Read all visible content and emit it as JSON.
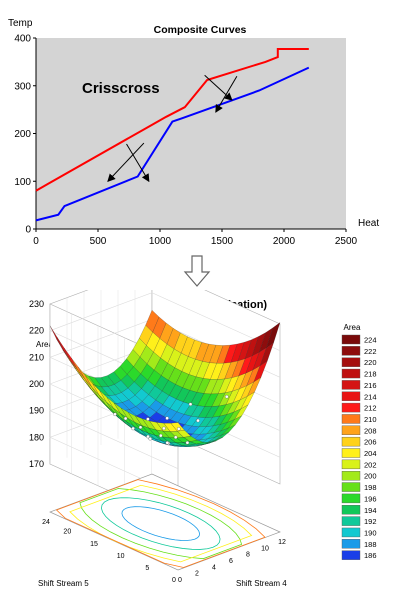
{
  "chart_data": [
    {
      "type": "line",
      "title": "Composite Curves",
      "xlabel": "Heat",
      "ylabel": "Temp",
      "xlim": [
        0,
        2500
      ],
      "ylim": [
        0,
        400
      ],
      "x_ticks": [
        0,
        500,
        1000,
        1500,
        2000,
        2500
      ],
      "y_ticks": [
        0,
        100,
        200,
        300,
        400
      ],
      "grid": false,
      "background": "#d4d4d4",
      "annotation": "Crisscross",
      "series": [
        {
          "color": "#ff0000",
          "points": [
            [
              0,
              80
            ],
            [
              100,
              95
            ],
            [
              1050,
              235
            ],
            [
              1200,
              255
            ],
            [
              1380,
              312
            ],
            [
              1850,
              350
            ],
            [
              1950,
              360
            ],
            [
              1950,
              377
            ],
            [
              2200,
              377
            ]
          ]
        },
        {
          "color": "#0000ff",
          "points": [
            [
              0,
              18
            ],
            [
              180,
              30
            ],
            [
              230,
              48
            ],
            [
              820,
              110
            ],
            [
              1100,
              225
            ],
            [
              1180,
              232
            ],
            [
              1500,
              262
            ],
            [
              1800,
              290
            ],
            [
              2200,
              338
            ]
          ]
        }
      ],
      "arrows": [
        {
          "from": [
            730,
            178
          ],
          "to": [
            910,
            100
          ]
        },
        {
          "from": [
            870,
            180
          ],
          "to": [
            580,
            100
          ]
        },
        {
          "from": [
            1620,
            320
          ],
          "to": [
            1450,
            245
          ]
        },
        {
          "from": [
            1360,
            322
          ],
          "to": [
            1580,
            270
          ]
        }
      ]
    },
    {
      "type": "surface3d",
      "title": "Area (Crisscross optimisation)",
      "zlabel": "Area",
      "zlim": [
        170,
        230
      ],
      "z_ticks": [
        170,
        180,
        190,
        200,
        210,
        220,
        230
      ],
      "xlabel": "Shift Stream 4",
      "ylabel": "Shift Stream 5",
      "x_ticks": [
        "0",
        "2",
        "4",
        "6",
        "8",
        "10",
        "12"
      ],
      "y_ticks": [
        "0",
        "5",
        "10",
        "15",
        "20",
        "24"
      ],
      "legend_title": "Area",
      "legend_position": "right",
      "colorbar": [
        {
          "value": 224,
          "color": "#7a0a0a"
        },
        {
          "value": 222,
          "color": "#8d0d0d"
        },
        {
          "value": 220,
          "color": "#a50f0f"
        },
        {
          "value": 218,
          "color": "#bf1010"
        },
        {
          "value": 216,
          "color": "#d41414"
        },
        {
          "value": 214,
          "color": "#e81414"
        },
        {
          "value": 212,
          "color": "#ff1a1a"
        },
        {
          "value": 210,
          "color": "#ff7a1a"
        },
        {
          "value": 208,
          "color": "#ffa31a"
        },
        {
          "value": 206,
          "color": "#ffd21a"
        },
        {
          "value": 204,
          "color": "#fff01a"
        },
        {
          "value": 202,
          "color": "#d9f21a"
        },
        {
          "value": 200,
          "color": "#a3ea1a"
        },
        {
          "value": 198,
          "color": "#66e01a"
        },
        {
          "value": 196,
          "color": "#2bd92b"
        },
        {
          "value": 194,
          "color": "#12c75a"
        },
        {
          "value": 192,
          "color": "#10c99a"
        },
        {
          "value": 190,
          "color": "#12c9d0"
        },
        {
          "value": 188,
          "color": "#1a9be8"
        },
        {
          "value": 186,
          "color": "#1a3ee8"
        }
      ]
    }
  ],
  "connector": "arrow-down"
}
